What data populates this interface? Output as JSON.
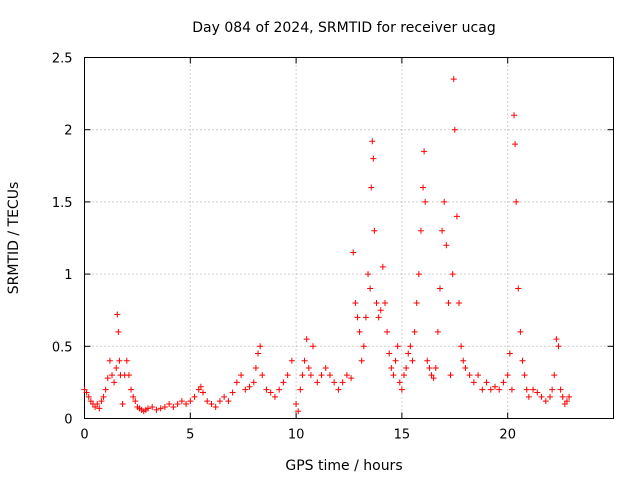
{
  "chart_data": {
    "type": "scatter",
    "title": "Day 084 of 2024, SRMTID for receiver ucag",
    "xlabel": "GPS time / hours",
    "ylabel": "SRMTID / TECUs",
    "xlim": [
      0,
      25
    ],
    "ylim": [
      0,
      2.5
    ],
    "x_ticks": [
      0,
      5,
      10,
      15,
      20
    ],
    "y_ticks": [
      0,
      0.5,
      1,
      1.5,
      2,
      2.5
    ],
    "x_tick_labels": [
      "0",
      "5",
      "10",
      "15",
      "20"
    ],
    "y_tick_labels": [
      "0",
      "0.5",
      "1",
      "1.5",
      "2",
      "2.5"
    ],
    "grid": true,
    "marker": "+",
    "color": "#ff0000",
    "series": [
      {
        "name": "SRMTID",
        "x": [
          0.0,
          0.1,
          0.2,
          0.3,
          0.4,
          0.5,
          0.6,
          0.7,
          0.8,
          0.9,
          1.0,
          1.1,
          1.2,
          1.3,
          1.4,
          1.5,
          1.55,
          1.6,
          1.65,
          1.7,
          1.8,
          1.9,
          2.0,
          2.1,
          2.2,
          2.3,
          2.4,
          2.5,
          2.6,
          2.7,
          2.8,
          2.9,
          3.0,
          3.2,
          3.4,
          3.6,
          3.8,
          4.0,
          4.2,
          4.4,
          4.6,
          4.8,
          5.0,
          5.2,
          5.4,
          5.5,
          5.6,
          5.8,
          6.0,
          6.2,
          6.4,
          6.6,
          6.8,
          7.0,
          7.2,
          7.4,
          7.6,
          7.8,
          8.0,
          8.1,
          8.2,
          8.3,
          8.4,
          8.6,
          8.8,
          9.0,
          9.2,
          9.4,
          9.6,
          9.8,
          10.0,
          10.1,
          10.2,
          10.3,
          10.4,
          10.5,
          10.6,
          10.7,
          10.8,
          11.0,
          11.2,
          11.4,
          11.6,
          11.8,
          12.0,
          12.2,
          12.4,
          12.6,
          12.7,
          12.8,
          12.9,
          13.0,
          13.1,
          13.2,
          13.3,
          13.4,
          13.5,
          13.55,
          13.6,
          13.65,
          13.7,
          13.8,
          13.9,
          14.0,
          14.1,
          14.2,
          14.3,
          14.4,
          14.5,
          14.6,
          14.7,
          14.8,
          14.9,
          15.0,
          15.1,
          15.2,
          15.3,
          15.4,
          15.5,
          15.6,
          15.7,
          15.8,
          15.9,
          16.0,
          16.05,
          16.1,
          16.2,
          16.3,
          16.4,
          16.5,
          16.6,
          16.7,
          16.8,
          16.9,
          17.0,
          17.1,
          17.2,
          17.3,
          17.4,
          17.45,
          17.5,
          17.6,
          17.7,
          17.8,
          17.9,
          18.0,
          18.2,
          18.4,
          18.6,
          18.8,
          19.0,
          19.2,
          19.4,
          19.6,
          19.8,
          20.0,
          20.1,
          20.2,
          20.3,
          20.35,
          20.4,
          20.5,
          20.6,
          20.7,
          20.8,
          20.9,
          21.0,
          21.2,
          21.4,
          21.6,
          21.8,
          22.0,
          22.1,
          22.2,
          22.3,
          22.4,
          22.5,
          22.6,
          22.7,
          22.8,
          22.9
        ],
        "y": [
          0.2,
          0.18,
          0.15,
          0.12,
          0.1,
          0.08,
          0.1,
          0.07,
          0.12,
          0.15,
          0.2,
          0.28,
          0.4,
          0.3,
          0.25,
          0.35,
          0.72,
          0.6,
          0.4,
          0.3,
          0.1,
          0.3,
          0.4,
          0.3,
          0.2,
          0.15,
          0.12,
          0.08,
          0.07,
          0.06,
          0.05,
          0.06,
          0.07,
          0.08,
          0.06,
          0.07,
          0.08,
          0.1,
          0.08,
          0.1,
          0.12,
          0.1,
          0.12,
          0.15,
          0.2,
          0.22,
          0.18,
          0.12,
          0.1,
          0.08,
          0.12,
          0.15,
          0.12,
          0.18,
          0.25,
          0.3,
          0.2,
          0.22,
          0.25,
          0.35,
          0.45,
          0.5,
          0.3,
          0.2,
          0.18,
          0.15,
          0.2,
          0.25,
          0.3,
          0.4,
          0.1,
          0.05,
          0.2,
          0.3,
          0.4,
          0.55,
          0.35,
          0.3,
          0.5,
          0.25,
          0.3,
          0.35,
          0.3,
          0.25,
          0.2,
          0.25,
          0.3,
          0.28,
          1.15,
          0.8,
          0.7,
          0.6,
          0.4,
          0.5,
          0.7,
          1.0,
          0.9,
          1.6,
          1.92,
          1.8,
          1.3,
          0.8,
          0.7,
          0.75,
          1.05,
          0.8,
          0.6,
          0.45,
          0.35,
          0.3,
          0.4,
          0.5,
          0.25,
          0.2,
          0.3,
          0.35,
          0.45,
          0.5,
          0.4,
          0.6,
          0.8,
          1.0,
          1.3,
          1.6,
          1.85,
          1.5,
          0.4,
          0.35,
          0.3,
          0.28,
          0.35,
          0.6,
          0.9,
          1.3,
          1.5,
          1.2,
          0.8,
          0.3,
          1.0,
          2.35,
          2.0,
          1.4,
          0.8,
          0.5,
          0.4,
          0.35,
          0.3,
          0.25,
          0.3,
          0.2,
          0.25,
          0.2,
          0.22,
          0.2,
          0.25,
          0.3,
          0.45,
          0.2,
          2.1,
          1.9,
          1.5,
          0.9,
          0.6,
          0.4,
          0.3,
          0.2,
          0.15,
          0.2,
          0.18,
          0.15,
          0.12,
          0.15,
          0.2,
          0.3,
          0.55,
          0.5,
          0.2,
          0.15,
          0.1,
          0.12,
          0.15
        ]
      }
    ]
  }
}
